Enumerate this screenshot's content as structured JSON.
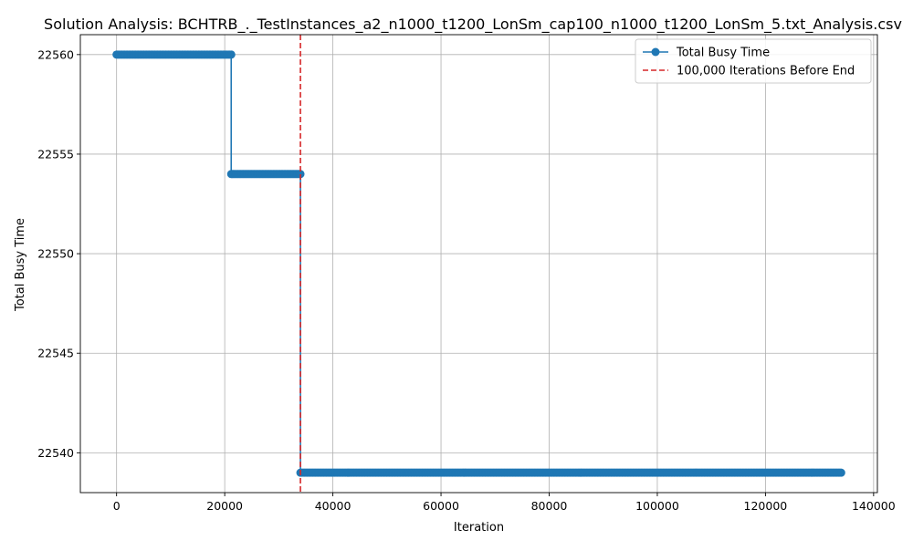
{
  "chart_data": {
    "type": "line",
    "title": "Solution Analysis: BCHTRB_._TestInstances_a2_n1000_t1200_LonSm_cap100_n1000_t1200_LonSm_5.txt_Analysis.csv",
    "xlabel": "Iteration",
    "ylabel": "Total Busy Time",
    "xlim": [
      -6700,
      140700
    ],
    "ylim": [
      22538,
      22561
    ],
    "x_ticks": [
      0,
      20000,
      40000,
      60000,
      80000,
      100000,
      120000,
      140000
    ],
    "y_ticks": [
      22540,
      22545,
      22550,
      22555,
      22560
    ],
    "grid": true,
    "legend_position": "top-right",
    "series": [
      {
        "name": "Total Busy Time",
        "color": "#1f77b4",
        "marker": "circle",
        "segments": [
          {
            "x_start": 0,
            "x_end": 21200,
            "y": 22560
          },
          {
            "x_start": 21200,
            "x_end": 34000,
            "y": 22554
          },
          {
            "x_start": 34000,
            "x_end": 134000,
            "y": 22539
          }
        ]
      }
    ],
    "reference_lines": [
      {
        "name": "100,000 Iterations Before End",
        "orientation": "vertical",
        "x": 34000,
        "color": "#d62728",
        "style": "dashed"
      }
    ]
  }
}
